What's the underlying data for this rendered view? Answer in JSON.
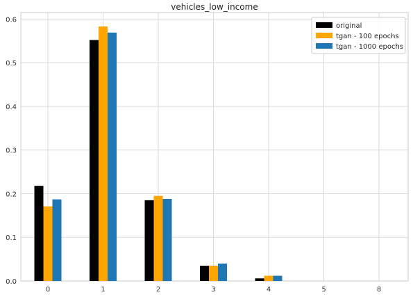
{
  "chart_data": {
    "type": "bar",
    "title": "vehicles_low_income",
    "xlabel": "",
    "ylabel": "",
    "categories": [
      "0",
      "1",
      "2",
      "3",
      "4",
      "5",
      "8"
    ],
    "series": [
      {
        "name": "original",
        "color": "#000000",
        "values": [
          0.218,
          0.552,
          0.185,
          0.035,
          0.006,
          0.0,
          0.0
        ]
      },
      {
        "name": "tgan - 100 epochs",
        "color": "#ffa500",
        "values": [
          0.171,
          0.583,
          0.195,
          0.035,
          0.012,
          0.0,
          0.0
        ]
      },
      {
        "name": "tgan - 1000 epochs",
        "color": "#1f77b4",
        "values": [
          0.187,
          0.569,
          0.188,
          0.04,
          0.012,
          0.0,
          0.0
        ]
      }
    ],
    "ylim": [
      0,
      0.615
    ],
    "yticks": [
      0.0,
      0.1,
      0.2,
      0.3,
      0.4,
      0.5,
      0.6
    ],
    "ytick_labels": [
      "0.0",
      "0.1",
      "0.2",
      "0.3",
      "0.4",
      "0.5",
      "0.6"
    ],
    "grid": true,
    "legend_position": "top-right"
  }
}
